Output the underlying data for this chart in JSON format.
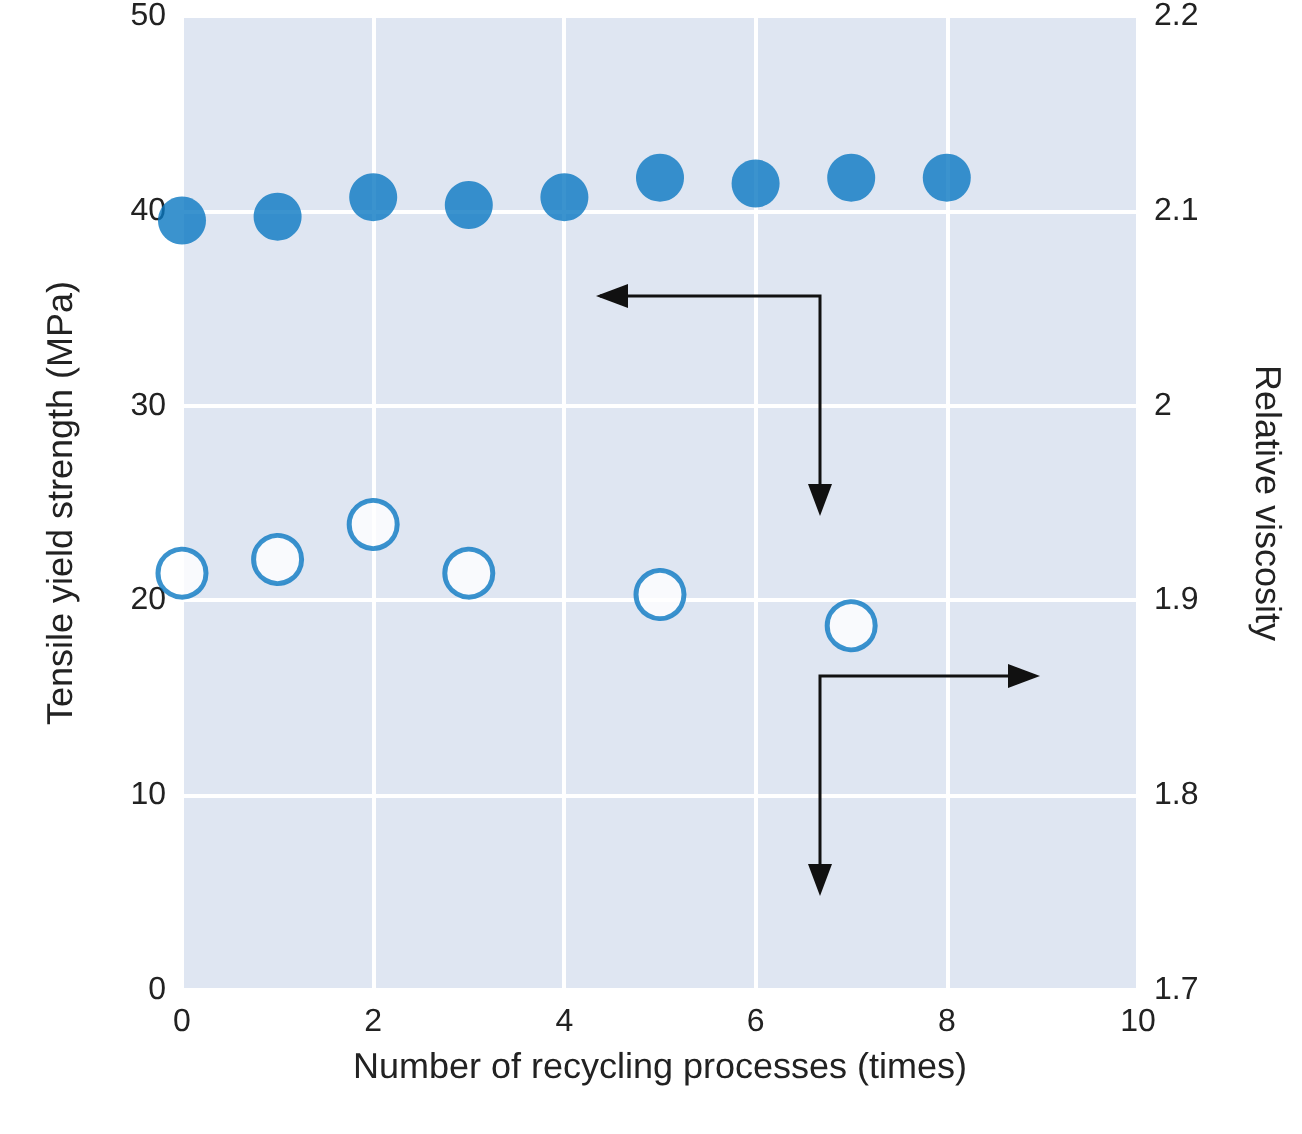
{
  "chart_data": {
    "type": "scatter",
    "xlabel": "Number of recycling processes (times)",
    "ylabel": "Tensile yield strength (MPa)",
    "y2label": "Relative viscosity",
    "xlim": [
      0,
      10
    ],
    "xticks": [
      0,
      2,
      4,
      6,
      8,
      10
    ],
    "ylim": [
      0,
      50
    ],
    "yticks": [
      0,
      10,
      20,
      30,
      40,
      50
    ],
    "y2lim": [
      1.7,
      2.2
    ],
    "y2ticks": [
      1.7,
      1.8,
      1.9,
      2,
      2.1,
      2.2
    ],
    "grid": true,
    "marker": "circle",
    "series": [
      {
        "color": "#0a78c2",
        "x": [
          0,
          1,
          2,
          3,
          4,
          5,
          6,
          7,
          8
        ],
        "values": [
          39.5,
          39.7,
          40.7,
          40.3,
          40.7,
          41.7,
          41.4,
          41.7,
          41.7
        ]
      },
      {
        "color": "#0a78c2",
        "axis": "y2",
        "x": [
          0,
          1,
          2,
          3,
          5,
          7
        ],
        "values": [
          1.914,
          1.921,
          1.939,
          1.914,
          1.903,
          1.887
        ]
      }
    ]
  }
}
